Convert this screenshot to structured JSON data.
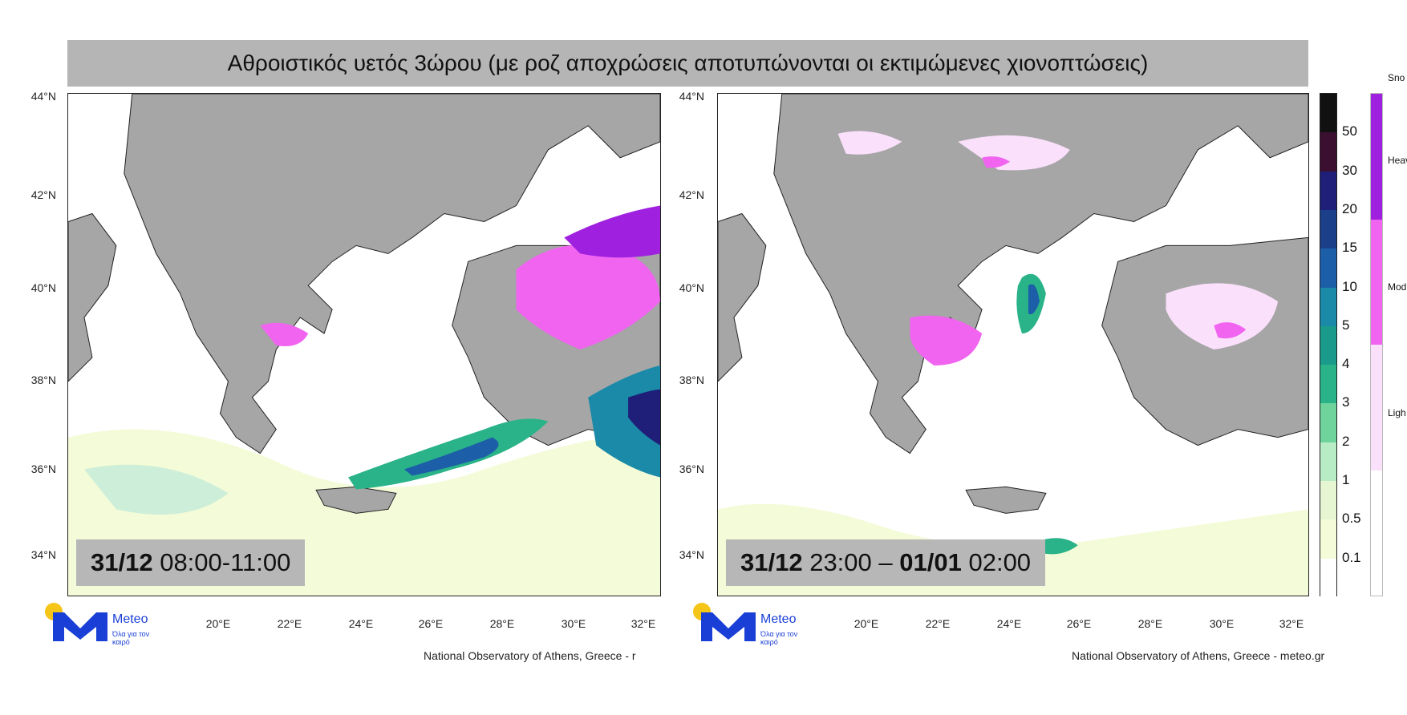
{
  "title": "Αθροιστικός υετός 3ώρου (με ροζ αποχρώσεις αποτυπώνονται οι εκτιμώμενες χιονοπτώσεις)",
  "lat_labels": [
    "44°N",
    "42°N",
    "40°N",
    "38°N",
    "36°N",
    "34°N"
  ],
  "lon_labels": [
    "20°E",
    "22°E",
    "24°E",
    "26°E",
    "28°E",
    "30°E",
    "32°E"
  ],
  "panels": [
    {
      "time_date_start": "31/12",
      "time_start": "08:00-11:00",
      "time_date_end": "",
      "time_end": "",
      "credit": "National Observatory of Athens, Greece - r"
    },
    {
      "time_date_start": "31/12",
      "time_start": "23:00 –",
      "time_date_end": "01/01",
      "time_end": "02:00",
      "credit": "National Observatory of Athens, Greece - meteo.gr"
    }
  ],
  "logo": {
    "name": "Meteo",
    "tagline": "Όλα για τον καιρό"
  },
  "precip_scale": {
    "labels": [
      "50",
      "30",
      "20",
      "15",
      "10",
      "5",
      "4",
      "3",
      "2",
      "1",
      "0.5",
      "0.1"
    ],
    "colors": [
      "#111111",
      "#3a0f30",
      "#1f1f7a",
      "#1c3f8a",
      "#1c5fa8",
      "#1a8aa8",
      "#1a9a8a",
      "#2ab388",
      "#6fd49c",
      "#b8ecc4",
      "#e6f5d2",
      "#f4fbd8",
      "#ffffff"
    ]
  },
  "snow_scale": {
    "title": "Sno",
    "labels": [
      "Heav",
      "Mod",
      "Ligh"
    ],
    "colors": [
      "#a020e0",
      "#f064f0",
      "#fbe0fb",
      "#ffffff"
    ]
  }
}
